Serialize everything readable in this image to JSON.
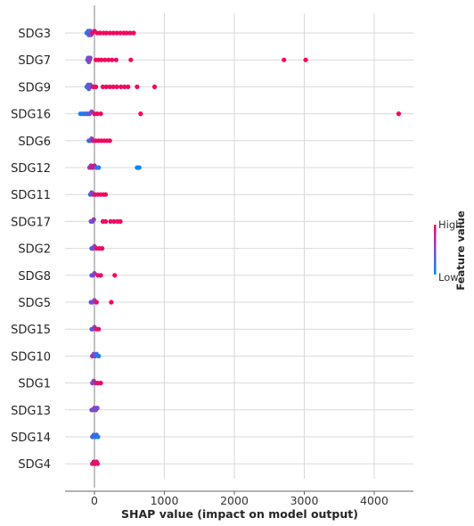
{
  "chart_data": {
    "type": "scatter",
    "subtype": "shap-beeswarm",
    "title": "",
    "xlabel": "SHAP value (impact on model output)",
    "ylabel": "",
    "xlim": [
      -450,
      4600
    ],
    "xticks": [
      0,
      1000,
      2000,
      3000,
      4000
    ],
    "grid": true,
    "legend": "right",
    "colorbar": {
      "title": "Feature value",
      "high_label": "High",
      "low_label": "Low",
      "high_color": "#ff0052",
      "low_color": "#008bfb"
    },
    "colors": {
      "high": "#ff0052",
      "low": "#008bfb",
      "mid": "#7a4bcf",
      "zero_line": "#999999",
      "grid": "#d9d9d9"
    },
    "features": [
      {
        "name": "SDG3",
        "points": [
          {
            "x": -110,
            "v": 0.05
          },
          {
            "x": -100,
            "v": 0.1
          },
          {
            "x": -90,
            "v": 0.2
          },
          {
            "x": -80,
            "v": 0.3
          },
          {
            "x": -70,
            "v": 0.45
          },
          {
            "x": -60,
            "v": 0.4
          },
          {
            "x": -50,
            "v": 0.5
          },
          {
            "x": -30,
            "v": 0.9
          },
          {
            "x": 0,
            "v": 0.9
          },
          {
            "x": 40,
            "v": 0.95
          },
          {
            "x": 80,
            "v": 0.95
          },
          {
            "x": 130,
            "v": 0.95
          },
          {
            "x": 170,
            "v": 0.95
          },
          {
            "x": 220,
            "v": 0.95
          },
          {
            "x": 270,
            "v": 0.95
          },
          {
            "x": 320,
            "v": 0.95
          },
          {
            "x": 370,
            "v": 0.95
          },
          {
            "x": 420,
            "v": 0.95
          },
          {
            "x": 460,
            "v": 0.95
          },
          {
            "x": 510,
            "v": 0.95
          },
          {
            "x": 560,
            "v": 0.95
          }
        ]
      },
      {
        "name": "SDG7",
        "points": [
          {
            "x": -100,
            "v": 0.3
          },
          {
            "x": -90,
            "v": 0.4
          },
          {
            "x": -80,
            "v": 0.5
          },
          {
            "x": -70,
            "v": 0.6
          },
          {
            "x": -60,
            "v": 0.55
          },
          {
            "x": 20,
            "v": 0.95
          },
          {
            "x": 60,
            "v": 0.95
          },
          {
            "x": 100,
            "v": 0.95
          },
          {
            "x": 150,
            "v": 0.95
          },
          {
            "x": 200,
            "v": 0.95
          },
          {
            "x": 250,
            "v": 0.95
          },
          {
            "x": 310,
            "v": 0.95
          },
          {
            "x": 520,
            "v": 0.95
          },
          {
            "x": 2710,
            "v": 1.0
          },
          {
            "x": 3020,
            "v": 1.0
          }
        ]
      },
      {
        "name": "SDG9",
        "points": [
          {
            "x": -110,
            "v": 0.05
          },
          {
            "x": -100,
            "v": 0.15
          },
          {
            "x": -90,
            "v": 0.25
          },
          {
            "x": -80,
            "v": 0.35
          },
          {
            "x": -70,
            "v": 0.5
          },
          {
            "x": -60,
            "v": 0.45
          },
          {
            "x": -20,
            "v": 0.9
          },
          {
            "x": 20,
            "v": 0.95
          },
          {
            "x": 120,
            "v": 0.95
          },
          {
            "x": 170,
            "v": 0.95
          },
          {
            "x": 220,
            "v": 0.95
          },
          {
            "x": 270,
            "v": 0.95
          },
          {
            "x": 320,
            "v": 0.95
          },
          {
            "x": 380,
            "v": 0.95
          },
          {
            "x": 430,
            "v": 0.95
          },
          {
            "x": 480,
            "v": 0.95
          },
          {
            "x": 610,
            "v": 0.95
          },
          {
            "x": 860,
            "v": 1.0
          }
        ]
      },
      {
        "name": "SDG16",
        "points": [
          {
            "x": -200,
            "v": 0.1
          },
          {
            "x": -160,
            "v": 0.15
          },
          {
            "x": -130,
            "v": 0.2
          },
          {
            "x": -100,
            "v": 0.3
          },
          {
            "x": -70,
            "v": 0.4
          },
          {
            "x": -40,
            "v": 0.6
          },
          {
            "x": 0,
            "v": 0.9
          },
          {
            "x": 40,
            "v": 0.95
          },
          {
            "x": 90,
            "v": 0.95
          },
          {
            "x": 660,
            "v": 1.0
          },
          {
            "x": 4350,
            "v": 1.0
          }
        ]
      },
      {
        "name": "SDG6",
        "points": [
          {
            "x": -80,
            "v": 0.2
          },
          {
            "x": -60,
            "v": 0.35
          },
          {
            "x": -40,
            "v": 0.55
          },
          {
            "x": -20,
            "v": 0.8
          },
          {
            "x": 20,
            "v": 0.9
          },
          {
            "x": 60,
            "v": 0.95
          },
          {
            "x": 100,
            "v": 0.95
          },
          {
            "x": 140,
            "v": 0.95
          },
          {
            "x": 180,
            "v": 0.95
          },
          {
            "x": 220,
            "v": 0.95
          }
        ]
      },
      {
        "name": "SDG12",
        "points": [
          {
            "x": -70,
            "v": 0.6
          },
          {
            "x": -50,
            "v": 0.7
          },
          {
            "x": -30,
            "v": 0.8
          },
          {
            "x": 0,
            "v": 0.85
          },
          {
            "x": 30,
            "v": 0.3
          },
          {
            "x": 60,
            "v": 0.15
          },
          {
            "x": 610,
            "v": 0.05
          },
          {
            "x": 640,
            "v": 0.05
          }
        ]
      },
      {
        "name": "SDG11",
        "points": [
          {
            "x": -60,
            "v": 0.3
          },
          {
            "x": -40,
            "v": 0.5
          },
          {
            "x": -20,
            "v": 0.7
          },
          {
            "x": 10,
            "v": 0.9
          },
          {
            "x": 50,
            "v": 0.95
          },
          {
            "x": 90,
            "v": 0.95
          },
          {
            "x": 130,
            "v": 0.95
          },
          {
            "x": 160,
            "v": 0.95
          }
        ]
      },
      {
        "name": "SDG17",
        "points": [
          {
            "x": -50,
            "v": 0.3
          },
          {
            "x": -30,
            "v": 0.5
          },
          {
            "x": -10,
            "v": 0.6
          },
          {
            "x": 120,
            "v": 0.95
          },
          {
            "x": 160,
            "v": 0.95
          },
          {
            "x": 230,
            "v": 0.95
          },
          {
            "x": 280,
            "v": 0.95
          },
          {
            "x": 330,
            "v": 0.95
          },
          {
            "x": 370,
            "v": 0.95
          }
        ]
      },
      {
        "name": "SDG2",
        "points": [
          {
            "x": -40,
            "v": 0.3
          },
          {
            "x": -20,
            "v": 0.5
          },
          {
            "x": 0,
            "v": 0.6
          },
          {
            "x": 30,
            "v": 0.9
          },
          {
            "x": 70,
            "v": 0.95
          },
          {
            "x": 110,
            "v": 0.95
          }
        ]
      },
      {
        "name": "SDG8",
        "points": [
          {
            "x": -40,
            "v": 0.3
          },
          {
            "x": -20,
            "v": 0.5
          },
          {
            "x": 0,
            "v": 0.6
          },
          {
            "x": 50,
            "v": 0.9
          },
          {
            "x": 90,
            "v": 0.95
          },
          {
            "x": 290,
            "v": 1.0
          }
        ]
      },
      {
        "name": "SDG5",
        "points": [
          {
            "x": -50,
            "v": 0.3
          },
          {
            "x": -30,
            "v": 0.5
          },
          {
            "x": 0,
            "v": 0.6
          },
          {
            "x": 30,
            "v": 0.9
          },
          {
            "x": 240,
            "v": 1.0
          }
        ]
      },
      {
        "name": "SDG15",
        "points": [
          {
            "x": -40,
            "v": 0.3
          },
          {
            "x": -20,
            "v": 0.5
          },
          {
            "x": 0,
            "v": 0.6
          },
          {
            "x": 30,
            "v": 0.9
          },
          {
            "x": 60,
            "v": 0.9
          }
        ]
      },
      {
        "name": "SDG10",
        "points": [
          {
            "x": -30,
            "v": 0.7
          },
          {
            "x": -10,
            "v": 0.5
          },
          {
            "x": 10,
            "v": 0.4
          },
          {
            "x": 30,
            "v": 0.3
          },
          {
            "x": 60,
            "v": 0.1
          }
        ]
      },
      {
        "name": "SDG1",
        "points": [
          {
            "x": -30,
            "v": 0.5
          },
          {
            "x": -10,
            "v": 0.6
          },
          {
            "x": 20,
            "v": 0.8
          },
          {
            "x": 50,
            "v": 0.9
          },
          {
            "x": 90,
            "v": 0.95
          }
        ]
      },
      {
        "name": "SDG13",
        "points": [
          {
            "x": -40,
            "v": 0.4
          },
          {
            "x": -20,
            "v": 0.5
          },
          {
            "x": 0,
            "v": 0.6
          },
          {
            "x": 20,
            "v": 0.55
          },
          {
            "x": 40,
            "v": 0.5
          }
        ]
      },
      {
        "name": "SDG14",
        "points": [
          {
            "x": -30,
            "v": 0.3
          },
          {
            "x": -10,
            "v": 0.2
          },
          {
            "x": 10,
            "v": 0.15
          },
          {
            "x": 30,
            "v": 0.3
          },
          {
            "x": 50,
            "v": 0.1
          }
        ]
      },
      {
        "name": "SDG4",
        "points": [
          {
            "x": -30,
            "v": 0.8
          },
          {
            "x": -10,
            "v": 0.9
          },
          {
            "x": 10,
            "v": 0.95
          },
          {
            "x": 30,
            "v": 0.85
          },
          {
            "x": 45,
            "v": 0.9
          }
        ]
      }
    ]
  }
}
